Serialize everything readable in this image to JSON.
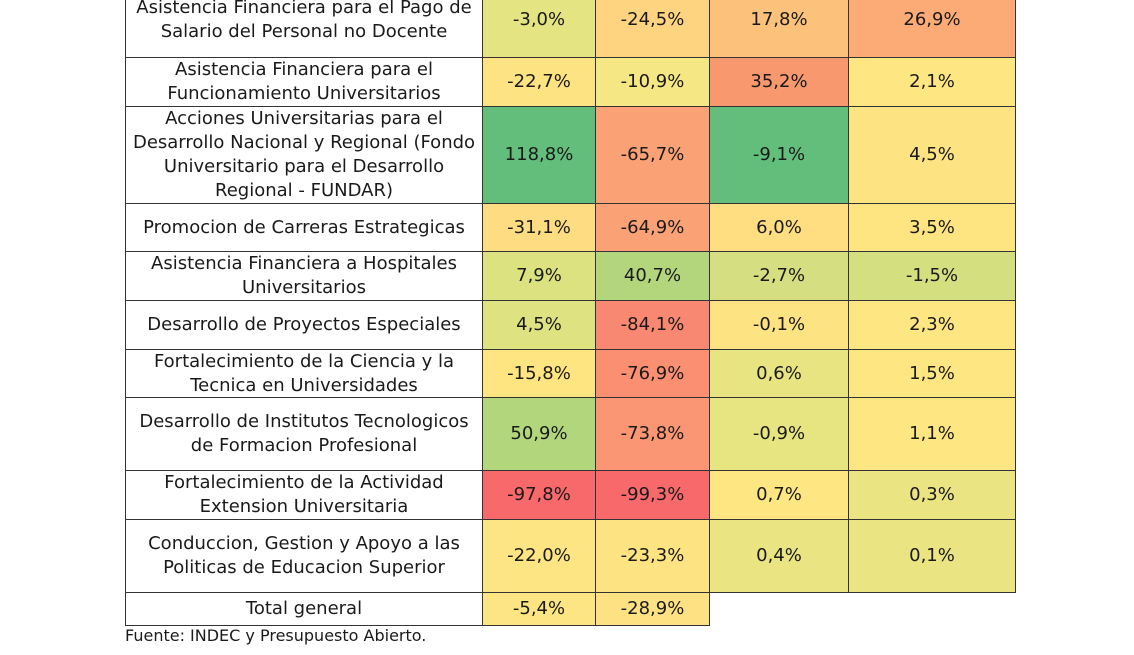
{
  "chart_data": {
    "type": "table",
    "rows": [
      {
        "label": "Asistencia Financiera para el Pago de Salario del Personal no Docente",
        "values": [
          "-3,0%",
          "-24,5%",
          "17,8%",
          "26,9%"
        ],
        "colors": [
          "#e5e482",
          "#fed480",
          "#fcc27b",
          "#fcab76"
        ]
      },
      {
        "label": "Asistencia Financiera para el Funcionamiento Universitarios",
        "values": [
          "-22,7%",
          "-10,9%",
          "35,2%",
          "2,1%"
        ],
        "colors": [
          "#fee382",
          "#f5e784",
          "#f8986e",
          "#fee783"
        ]
      },
      {
        "label": "Acciones Universitarias para el Desarrollo Nacional y Regional (Fondo Universitario para el Desarrollo Regional - FUNDAR)",
        "values": [
          "118,8%",
          "-65,7%",
          "-9,1%",
          "4,5%"
        ],
        "colors": [
          "#63be7b",
          "#fba176",
          "#63be7b",
          "#fee382"
        ]
      },
      {
        "label": "Promocion de Carreras Estrategicas",
        "values": [
          "-31,1%",
          "-64,9%",
          "6,0%",
          "3,5%"
        ],
        "colors": [
          "#fedc81",
          "#fba176",
          "#fede81",
          "#fee582"
        ]
      },
      {
        "label": "Asistencia Financiera a Hospitales Universitarios",
        "values": [
          "7,9%",
          "40,7%",
          "-2,7%",
          "-1,5%"
        ],
        "colors": [
          "#dde280",
          "#b3d67d",
          "#d5df81",
          "#d4df80"
        ]
      },
      {
        "label": "Desarrollo de Proyectos Especiales",
        "values": [
          "4,5%",
          "-84,1%",
          "-0,1%",
          "2,3%"
        ],
        "colors": [
          "#dee281",
          "#f98872",
          "#fee382",
          "#fee783"
        ]
      },
      {
        "label": "Fortalecimiento de la Ciencia y la Tecnica en Universidades",
        "values": [
          "-15,8%",
          "-76,9%",
          "0,6%",
          "1,5%"
        ],
        "colors": [
          "#fee582",
          "#fa8f72",
          "#e8e482",
          "#fee783"
        ]
      },
      {
        "label": "Desarrollo de Institutos Tecnologicos de Formacion Profesional",
        "values": [
          "50,9%",
          "-73,8%",
          "-0,9%",
          "1,1%"
        ],
        "colors": [
          "#b2d67c",
          "#fb9674",
          "#e6e582",
          "#fee783"
        ]
      },
      {
        "label": "Fortalecimiento de la Actividad Extension Universitaria",
        "values": [
          "-97,8%",
          "-99,3%",
          "0,7%",
          "0,3%"
        ],
        "colors": [
          "#f8696b",
          "#f8696b",
          "#fee783",
          "#ebe482"
        ]
      },
      {
        "label": "Conduccion, Gestion y Apoyo a las Politicas de Educacion Superior",
        "values": [
          "-22,0%",
          "-23,3%",
          "0,4%",
          "0,1%"
        ],
        "colors": [
          "#fee583",
          "#fee382",
          "#ebe483",
          "#ebe482"
        ]
      }
    ],
    "total": {
      "label": "Total general",
      "values": [
        "-5,4%",
        "-28,9%"
      ],
      "colors": [
        "#fee583",
        "#fee182"
      ]
    }
  },
  "footer": "Fuente: INDEC y Presupuesto Abierto."
}
